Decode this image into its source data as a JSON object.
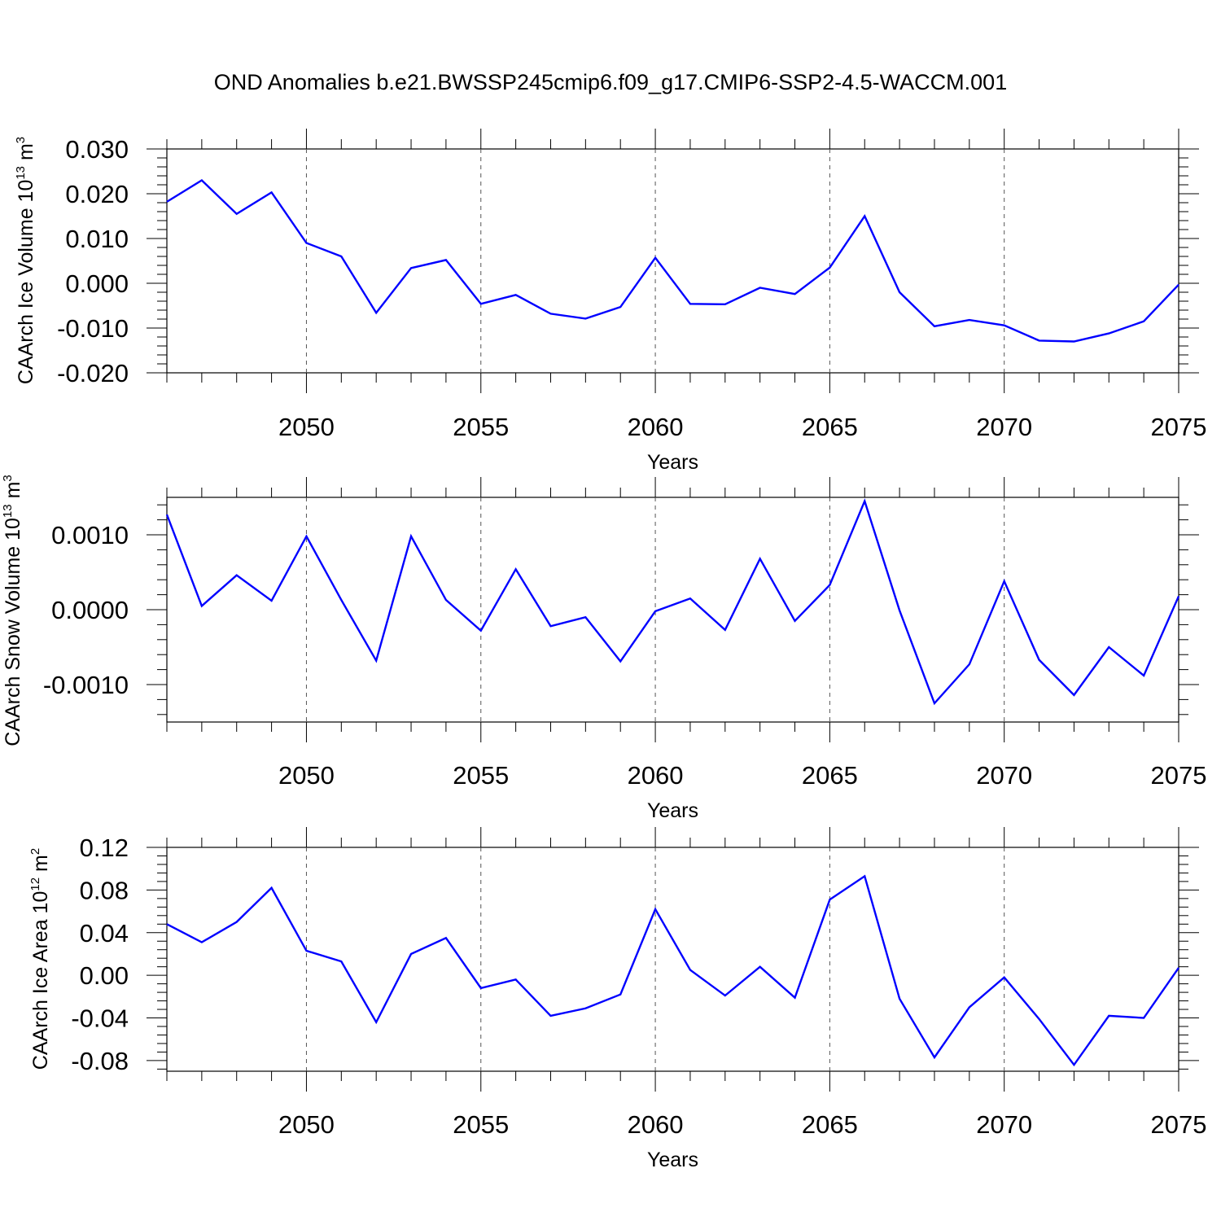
{
  "title": "OND Anomalies b.e21.BWSSP245cmip6.f09_g17.CMIP6-SSP2-4.5-WACCM.001",
  "chart_data": [
    {
      "type": "line",
      "ylabel_main": "CAArch Ice Volume 10",
      "ylabel_exp": "13",
      "ylabel_unit": " m",
      "ylabel_unit_exp": "3",
      "xlabel": "Years",
      "xlim": [
        2046,
        2075
      ],
      "ylim": [
        -0.02,
        0.03
      ],
      "x_ticks": [
        "2050",
        "2055",
        "2060",
        "2065",
        "2070",
        "2075"
      ],
      "y_ticks": [
        {
          "v": 0.03,
          "label": "0.030"
        },
        {
          "v": 0.02,
          "label": "0.020"
        },
        {
          "v": 0.01,
          "label": "0.010"
        },
        {
          "v": 0.0,
          "label": "0.000"
        },
        {
          "v": -0.01,
          "label": "-0.010"
        },
        {
          "v": -0.02,
          "label": "-0.020"
        }
      ],
      "line_color": "#0000ff",
      "x": [
        2046,
        2047,
        2048,
        2049,
        2050,
        2051,
        2052,
        2053,
        2054,
        2055,
        2056,
        2057,
        2058,
        2059,
        2060,
        2061,
        2062,
        2063,
        2064,
        2065,
        2066,
        2067,
        2068,
        2069,
        2070,
        2071,
        2072,
        2073,
        2074,
        2075
      ],
      "values": [
        0.0182,
        0.023,
        0.0155,
        0.0203,
        0.009,
        0.006,
        -0.0066,
        0.0034,
        0.0052,
        -0.0046,
        -0.0026,
        -0.0068,
        -0.0079,
        -0.0053,
        0.0057,
        -0.0046,
        -0.0047,
        -0.001,
        -0.0024,
        0.0035,
        0.015,
        -0.002,
        -0.0096,
        -0.0082,
        -0.0094,
        -0.0128,
        -0.013,
        -0.0112,
        -0.0085,
        -0.0003
      ]
    },
    {
      "type": "line",
      "ylabel_main": "CAArch Snow Volume 10",
      "ylabel_exp": "13",
      "ylabel_unit": " m",
      "ylabel_unit_exp": "3",
      "xlabel": "Years",
      "xlim": [
        2046,
        2075
      ],
      "ylim": [
        -0.0015,
        0.0015
      ],
      "x_ticks": [
        "2050",
        "2055",
        "2060",
        "2065",
        "2070",
        "2075"
      ],
      "y_ticks": [
        {
          "v": 0.001,
          "label": "0.0010"
        },
        {
          "v": 0.0,
          "label": "0.0000"
        },
        {
          "v": -0.001,
          "label": "-0.0010"
        }
      ],
      "line_color": "#0000ff",
      "x": [
        2046,
        2047,
        2048,
        2049,
        2050,
        2051,
        2052,
        2053,
        2054,
        2055,
        2056,
        2057,
        2058,
        2059,
        2060,
        2061,
        2062,
        2063,
        2064,
        2065,
        2066,
        2067,
        2068,
        2069,
        2070,
        2071,
        2072,
        2073,
        2074,
        2075
      ],
      "values": [
        0.00127,
        5e-05,
        0.00046,
        0.00012,
        0.00098,
        0.00013,
        -0.00068,
        0.00098,
        0.00013,
        -0.00028,
        0.00054,
        -0.00022,
        -0.0001,
        -0.00069,
        -2e-05,
        0.00015,
        -0.00027,
        0.00068,
        -0.00015,
        0.00033,
        0.00145,
        -1e-05,
        -0.00125,
        -0.00073,
        0.00038,
        -0.00067,
        -0.00114,
        -0.0005,
        -0.00088,
        0.00018
      ]
    },
    {
      "type": "line",
      "ylabel_main": "CAArch Ice Area 10",
      "ylabel_exp": "12",
      "ylabel_unit": " m",
      "ylabel_unit_exp": "2",
      "xlabel": "Years",
      "xlim": [
        2046,
        2075
      ],
      "ylim": [
        -0.09,
        0.12
      ],
      "x_ticks": [
        "2050",
        "2055",
        "2060",
        "2065",
        "2070",
        "2075"
      ],
      "y_ticks": [
        {
          "v": 0.12,
          "label": "0.12"
        },
        {
          "v": 0.08,
          "label": "0.08"
        },
        {
          "v": 0.04,
          "label": "0.04"
        },
        {
          "v": 0.0,
          "label": "0.00"
        },
        {
          "v": -0.04,
          "label": "-0.04"
        },
        {
          "v": -0.08,
          "label": "-0.08"
        }
      ],
      "line_color": "#0000ff",
      "x": [
        2046,
        2047,
        2048,
        2049,
        2050,
        2051,
        2052,
        2053,
        2054,
        2055,
        2056,
        2057,
        2058,
        2059,
        2060,
        2061,
        2062,
        2063,
        2064,
        2065,
        2066,
        2067,
        2068,
        2069,
        2070,
        2071,
        2072,
        2073,
        2074,
        2075
      ],
      "values": [
        0.048,
        0.031,
        0.05,
        0.082,
        0.023,
        0.013,
        -0.044,
        0.02,
        0.035,
        -0.012,
        -0.004,
        -0.038,
        -0.031,
        -0.018,
        0.062,
        0.005,
        -0.019,
        0.008,
        -0.021,
        0.071,
        0.093,
        -0.022,
        -0.077,
        -0.03,
        -0.002,
        -0.041,
        -0.084,
        -0.038,
        -0.04,
        0.007
      ]
    }
  ]
}
